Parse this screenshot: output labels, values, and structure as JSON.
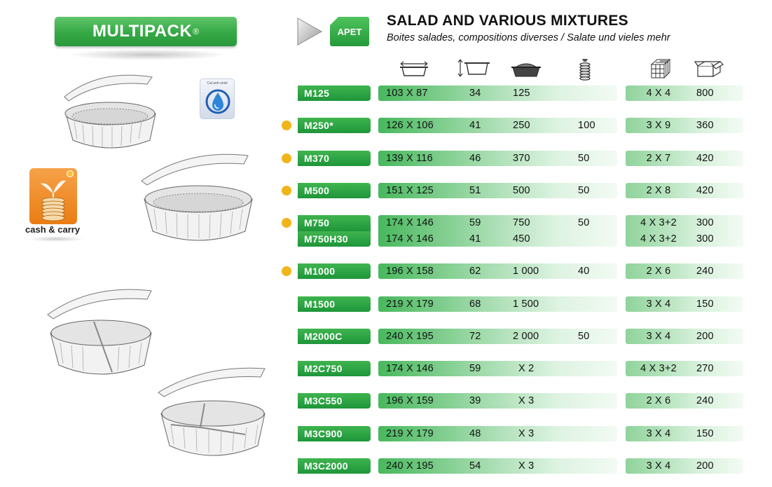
{
  "brand": {
    "name": "MULTIPACK",
    "mark": "®"
  },
  "material_tag": "APET",
  "title": "SALAD AND VARIOUS MIXTURES",
  "subtitle": "Boites salades, compositions diverses / Salate und vieles mehr",
  "cash_carry_label": "cash & carry",
  "recycle_label": "Cal anti-uniel",
  "columns": [
    {
      "icon": "width-length-icon"
    },
    {
      "icon": "height-icon"
    },
    {
      "icon": "capacity-icon"
    },
    {
      "icon": "stack-count-icon"
    },
    {
      "icon": "carton-layers-icon"
    },
    {
      "icon": "box-quantity-icon"
    }
  ],
  "colors": {
    "green": "#2ea542",
    "bullet": "#f0b51a",
    "orange": "#ee8519"
  },
  "rows": [
    {
      "code": "M125",
      "dims": "103 X 87",
      "height": "34",
      "capacity": "125",
      "count": "",
      "pack": "4 X 4",
      "qty": "800",
      "bullet": false
    },
    {
      "code": "M250*",
      "dims": "126 X 106",
      "height": "41",
      "capacity": "250",
      "count": "100",
      "pack": "3 X 9",
      "qty": "360",
      "bullet": true
    },
    {
      "code": "M370",
      "dims": "139 X 116",
      "height": "46",
      "capacity": "370",
      "count": "50",
      "pack": "2 X 7",
      "qty": "420",
      "bullet": true
    },
    {
      "code": "M500",
      "dims": "151 X 125",
      "height": "51",
      "capacity": "500",
      "count": "50",
      "pack": "2 X 8",
      "qty": "420",
      "bullet": true
    },
    {
      "code": "M750",
      "dims": "174 X 146",
      "height": "59",
      "capacity": "750",
      "count": "50",
      "pack": "4 X 3+2",
      "qty": "300",
      "bullet": true
    },
    {
      "code": "M750H30",
      "dims": "174 X 146",
      "height": "41",
      "capacity": "450",
      "count": "",
      "pack": "4 X 3+2",
      "qty": "300",
      "bullet": false
    },
    {
      "code": "M1000",
      "dims": "196 X 158",
      "height": "62",
      "capacity": "1 000",
      "count": "40",
      "pack": "2 X 6",
      "qty": "240",
      "bullet": true
    },
    {
      "code": "M1500",
      "dims": "219 X 179",
      "height": "68",
      "capacity": "1 500",
      "count": "",
      "pack": "3 X 4",
      "qty": "150",
      "bullet": false
    },
    {
      "code": "M2000C",
      "dims": "240 X 195",
      "height": "72",
      "capacity": "2 000",
      "count": "50",
      "pack": "3 X 4",
      "qty": "200",
      "bullet": false
    },
    {
      "code": "M2C750",
      "dims": "174 X 146",
      "height": "59",
      "capacity": "X 2",
      "count": "",
      "pack": "4 X 3+2",
      "qty": "270",
      "bullet": false
    },
    {
      "code": "M3C550",
      "dims": "196 X 159",
      "height": "39",
      "capacity": "X 3",
      "count": "",
      "pack": "2 X 6",
      "qty": "240",
      "bullet": false
    },
    {
      "code": "M3C900",
      "dims": "219 X 179",
      "height": "48",
      "capacity": "X 3",
      "count": "",
      "pack": "3 X 4",
      "qty": "150",
      "bullet": false
    },
    {
      "code": "M3C2000",
      "dims": "240 X 195",
      "height": "54",
      "capacity": "X 3",
      "count": "",
      "pack": "3 X 4",
      "qty": "200",
      "bullet": false
    }
  ]
}
